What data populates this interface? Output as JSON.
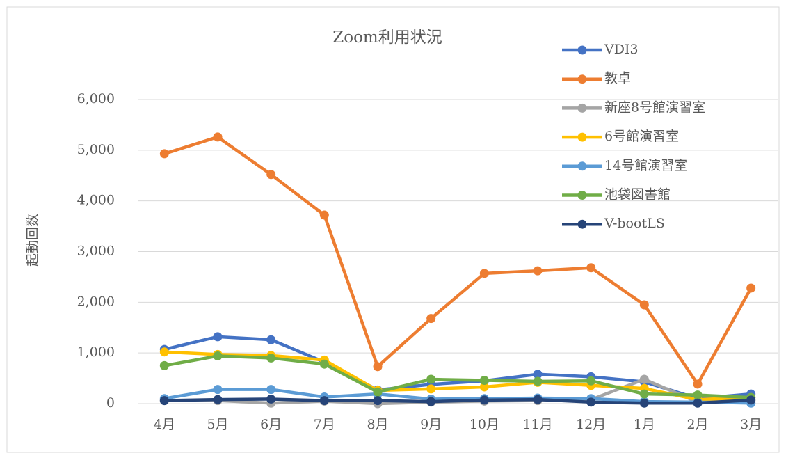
{
  "chart_data": {
    "type": "line",
    "title": "Zoom利用状況",
    "y_label": "起動回数",
    "categories": [
      "4月",
      "5月",
      "6月",
      "7月",
      "8月",
      "9月",
      "10月",
      "11月",
      "12月",
      "1月",
      "2月",
      "3月"
    ],
    "series": [
      {
        "name": "VDI3",
        "color": "#4472c4",
        "values": [
          1070,
          1320,
          1260,
          820,
          270,
          380,
          450,
          580,
          530,
          430,
          100,
          190
        ]
      },
      {
        "name": "教卓",
        "color": "#ed7d31",
        "values": [
          4930,
          5260,
          4520,
          3720,
          730,
          1680,
          2570,
          2620,
          2680,
          1950,
          385,
          2280
        ]
      },
      {
        "name": "新座8号館演習室",
        "color": "#a5a5a5",
        "values": [
          60,
          60,
          10,
          50,
          0,
          30,
          50,
          60,
          80,
          480,
          30,
          60
        ]
      },
      {
        "name": "6号館演習室",
        "color": "#ffc000",
        "values": [
          1020,
          970,
          950,
          860,
          260,
          290,
          330,
          420,
          360,
          300,
          80,
          120
        ]
      },
      {
        "name": "14号館演習室",
        "color": "#5b9bd5",
        "values": [
          100,
          280,
          280,
          130,
          190,
          90,
          100,
          110,
          100,
          40,
          30,
          10
        ]
      },
      {
        "name": "池袋図書館",
        "color": "#70ad47",
        "values": [
          750,
          940,
          900,
          780,
          230,
          480,
          460,
          440,
          450,
          190,
          170,
          120
        ]
      },
      {
        "name": "V-bootLS",
        "color": "#264478",
        "values": [
          60,
          80,
          90,
          60,
          60,
          40,
          70,
          80,
          30,
          10,
          10,
          70
        ]
      }
    ],
    "ylim": [
      0,
      6000
    ],
    "yticks": [
      0,
      {
        "value": 1000,
        "label": "1,000"
      },
      {
        "value": 2000,
        "label": "2,000"
      },
      {
        "value": 3000,
        "label": "3,000"
      },
      {
        "value": 4000,
        "label": "4,000"
      },
      {
        "value": 5000,
        "label": "5,000"
      },
      {
        "value": 6000,
        "label": "6,000"
      }
    ],
    "grid": true,
    "legend": "upper right"
  }
}
